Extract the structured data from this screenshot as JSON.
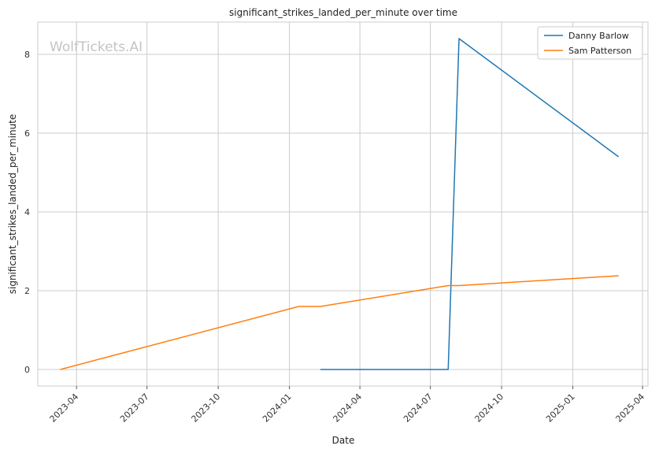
{
  "chart_data": {
    "type": "line",
    "title": "significant_strikes_landed_per_minute over time",
    "xlabel": "Date",
    "ylabel": "significant_strikes_landed_per_minute",
    "watermark": "WolfTickets.AI",
    "x_ticks": [
      "2023-04",
      "2023-07",
      "2023-10",
      "2024-01",
      "2024-04",
      "2024-07",
      "2024-10",
      "2025-01",
      "2025-04"
    ],
    "y_ticks": [
      "0",
      "2",
      "4",
      "6",
      "8"
    ],
    "xlim": [
      "2023-02-10",
      "2025-04-08"
    ],
    "ylim": [
      -0.42,
      8.82
    ],
    "grid": true,
    "legend_position": "top-right",
    "series": [
      {
        "name": "Danny Barlow",
        "color": "#1f77b4",
        "x": [
          "2024-02-10",
          "2024-07-24",
          "2024-08-07",
          "2025-03-01"
        ],
        "y": [
          0.0,
          0.0,
          8.4,
          5.4
        ]
      },
      {
        "name": "Sam Patterson",
        "color": "#ff7f0e",
        "x": [
          "2023-03-11",
          "2024-01-13",
          "2024-02-10",
          "2024-07-24",
          "2024-08-07",
          "2025-03-01"
        ],
        "y": [
          0.0,
          1.6,
          1.6,
          2.13,
          2.13,
          2.38
        ]
      }
    ]
  }
}
